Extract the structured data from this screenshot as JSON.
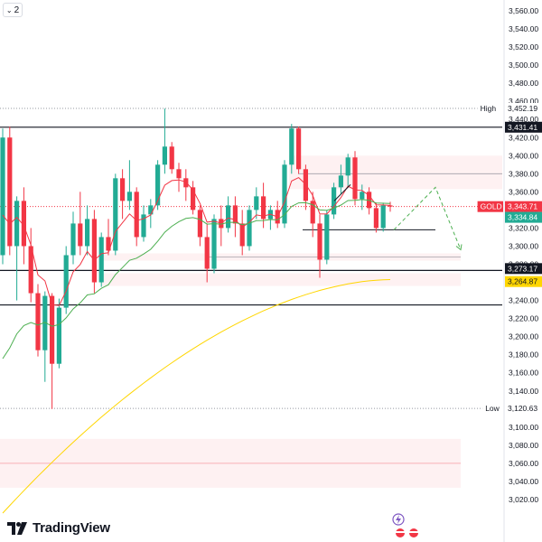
{
  "toolbar": {
    "collapse_count": "2"
  },
  "branding": {
    "logo_text": "TradingView"
  },
  "chart_data": {
    "type": "candlestick",
    "symbol": "GOLD",
    "y_axis": {
      "ticks": [
        "3,560.00",
        "3,540.00",
        "3,520.00",
        "3,500.00",
        "3,480.00",
        "3,460.00",
        "3,440.00",
        "3,420.00",
        "3,400.00",
        "3,380.00",
        "3,360.00",
        "3,340.00",
        "3,320.00",
        "3,300.00",
        "3,280.00",
        "3,260.00",
        "3,240.00",
        "3,220.00",
        "3,200.00",
        "3,180.00",
        "3,160.00",
        "3,140.00",
        "3,120.00",
        "3,100.00",
        "3,080.00",
        "3,060.00",
        "3,040.00",
        "3,020.00"
      ],
      "tick_values": [
        3560,
        3540,
        3520,
        3500,
        3480,
        3460,
        3440,
        3420,
        3400,
        3380,
        3360,
        3340,
        3320,
        3300,
        3280,
        3260,
        3240,
        3220,
        3200,
        3180,
        3160,
        3140,
        3120,
        3100,
        3080,
        3060,
        3040,
        3020
      ],
      "range": [
        3015,
        3565
      ]
    },
    "price_labels": [
      {
        "tag": "High",
        "text": "3,452.19",
        "value": 3452.19,
        "style": "plain"
      },
      {
        "tag": "",
        "text": "3,431.41",
        "value": 3431.41,
        "style": "dark"
      },
      {
        "tag": "GOLD",
        "text": "3,343.71",
        "value": 3343.71,
        "style": "red"
      },
      {
        "tag": "",
        "text": "3,334.84",
        "value": 3334.84,
        "style": "green"
      },
      {
        "tag": "",
        "text": "3,273.17",
        "value": 3273.17,
        "style": "dark"
      },
      {
        "tag": "",
        "text": "3,264.87",
        "value": 3264.87,
        "style": "yellow"
      },
      {
        "tag": "Low",
        "text": "3,120.63",
        "value": 3120.63,
        "style": "plain"
      }
    ],
    "horizontal_lines": [
      3431.41,
      3273.17,
      3235
    ],
    "zones": [
      {
        "from": 3400,
        "to": 3363,
        "color": "#f23645"
      },
      {
        "from": 3292,
        "to": 3284,
        "color": "#f23645"
      },
      {
        "from": 3270,
        "to": 3256,
        "color": "#f23645"
      },
      {
        "from": 3087,
        "to": 3033,
        "color": "#f23645"
      }
    ],
    "colors": {
      "up": "#22ab94",
      "down": "#f23645",
      "ema_fast": "#f23645",
      "ema_mid": "#4caf50",
      "ema_slow": "#ffd600",
      "projection": "#4caf50"
    },
    "candles": [
      {
        "o": 3290,
        "h": 3430,
        "l": 3280,
        "c": 3420
      },
      {
        "o": 3420,
        "h": 3432,
        "l": 3290,
        "c": 3300
      },
      {
        "o": 3300,
        "h": 3355,
        "l": 3240,
        "c": 3350
      },
      {
        "o": 3350,
        "h": 3365,
        "l": 3280,
        "c": 3300
      },
      {
        "o": 3300,
        "h": 3320,
        "l": 3238,
        "c": 3248
      },
      {
        "o": 3248,
        "h": 3258,
        "l": 3178,
        "c": 3185
      },
      {
        "o": 3185,
        "h": 3250,
        "l": 3150,
        "c": 3245
      },
      {
        "o": 3245,
        "h": 3248,
        "l": 3120,
        "c": 3170
      },
      {
        "o": 3170,
        "h": 3242,
        "l": 3165,
        "c": 3232
      },
      {
        "o": 3232,
        "h": 3300,
        "l": 3225,
        "c": 3290
      },
      {
        "o": 3290,
        "h": 3338,
        "l": 3280,
        "c": 3325
      },
      {
        "o": 3325,
        "h": 3360,
        "l": 3290,
        "c": 3300
      },
      {
        "o": 3300,
        "h": 3345,
        "l": 3290,
        "c": 3330
      },
      {
        "o": 3330,
        "h": 3340,
        "l": 3248,
        "c": 3260
      },
      {
        "o": 3260,
        "h": 3315,
        "l": 3255,
        "c": 3310
      },
      {
        "o": 3310,
        "h": 3330,
        "l": 3290,
        "c": 3295
      },
      {
        "o": 3295,
        "h": 3380,
        "l": 3290,
        "c": 3375
      },
      {
        "o": 3375,
        "h": 3385,
        "l": 3330,
        "c": 3350
      },
      {
        "o": 3350,
        "h": 3395,
        "l": 3340,
        "c": 3360
      },
      {
        "o": 3360,
        "h": 3365,
        "l": 3300,
        "c": 3310
      },
      {
        "o": 3310,
        "h": 3345,
        "l": 3305,
        "c": 3335
      },
      {
        "o": 3335,
        "h": 3352,
        "l": 3320,
        "c": 3345
      },
      {
        "o": 3345,
        "h": 3395,
        "l": 3340,
        "c": 3390
      },
      {
        "o": 3390,
        "h": 3452,
        "l": 3380,
        "c": 3410
      },
      {
        "o": 3410,
        "h": 3415,
        "l": 3380,
        "c": 3385
      },
      {
        "o": 3385,
        "h": 3392,
        "l": 3360,
        "c": 3375
      },
      {
        "o": 3375,
        "h": 3385,
        "l": 3350,
        "c": 3365
      },
      {
        "o": 3365,
        "h": 3372,
        "l": 3335,
        "c": 3340
      },
      {
        "o": 3340,
        "h": 3345,
        "l": 3300,
        "c": 3310
      },
      {
        "o": 3310,
        "h": 3325,
        "l": 3260,
        "c": 3275
      },
      {
        "o": 3275,
        "h": 3335,
        "l": 3270,
        "c": 3330
      },
      {
        "o": 3330,
        "h": 3345,
        "l": 3300,
        "c": 3320
      },
      {
        "o": 3320,
        "h": 3355,
        "l": 3315,
        "c": 3345
      },
      {
        "o": 3345,
        "h": 3355,
        "l": 3310,
        "c": 3325
      },
      {
        "o": 3325,
        "h": 3340,
        "l": 3290,
        "c": 3300
      },
      {
        "o": 3300,
        "h": 3345,
        "l": 3295,
        "c": 3340
      },
      {
        "o": 3340,
        "h": 3365,
        "l": 3330,
        "c": 3355
      },
      {
        "o": 3355,
        "h": 3370,
        "l": 3320,
        "c": 3330
      },
      {
        "o": 3330,
        "h": 3345,
        "l": 3318,
        "c": 3340
      },
      {
        "o": 3340,
        "h": 3350,
        "l": 3320,
        "c": 3325
      },
      {
        "o": 3325,
        "h": 3395,
        "l": 3320,
        "c": 3390
      },
      {
        "o": 3390,
        "h": 3435,
        "l": 3380,
        "c": 3430
      },
      {
        "o": 3430,
        "h": 3432,
        "l": 3380,
        "c": 3385
      },
      {
        "o": 3385,
        "h": 3390,
        "l": 3340,
        "c": 3350
      },
      {
        "o": 3350,
        "h": 3360,
        "l": 3310,
        "c": 3325
      },
      {
        "o": 3325,
        "h": 3335,
        "l": 3265,
        "c": 3285
      },
      {
        "o": 3285,
        "h": 3340,
        "l": 3280,
        "c": 3335
      },
      {
        "o": 3335,
        "h": 3370,
        "l": 3330,
        "c": 3365
      },
      {
        "o": 3365,
        "h": 3390,
        "l": 3358,
        "c": 3378
      },
      {
        "o": 3378,
        "h": 3402,
        "l": 3365,
        "c": 3398
      },
      {
        "o": 3398,
        "h": 3405,
        "l": 3345,
        "c": 3352
      },
      {
        "o": 3352,
        "h": 3368,
        "l": 3340,
        "c": 3360
      },
      {
        "o": 3360,
        "h": 3365,
        "l": 3335,
        "c": 3342
      },
      {
        "o": 3342,
        "h": 3348,
        "l": 3315,
        "c": 3320
      },
      {
        "o": 3320,
        "h": 3348,
        "l": 3316,
        "c": 3345
      },
      {
        "o": 3345,
        "h": 3349,
        "l": 3338,
        "c": 3343.71
      }
    ]
  }
}
